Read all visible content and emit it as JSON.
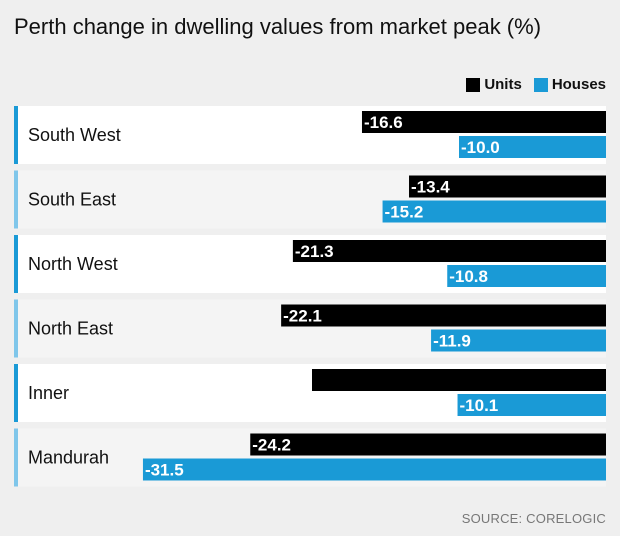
{
  "title": "Perth change in dwelling values from market peak (%)",
  "source": "SOURCE: CORELOGIC",
  "colors": {
    "units": "#000000",
    "houses": "#1a9ad6",
    "accent_dark": "#1a9ad6",
    "accent_light": "#7fc6ea",
    "row_white": "#ffffff",
    "row_grey": "#f4f4f4"
  },
  "chart_data": {
    "type": "bar",
    "orientation": "horizontal",
    "title": "Perth change in dwelling values from market peak (%)",
    "categories": [
      "South West",
      "South East",
      "North West",
      "North East",
      "Inner",
      "Mandurah"
    ],
    "series": [
      {
        "name": "Units",
        "values": [
          -16.6,
          -13.4,
          -21.3,
          -22.1,
          -20.0,
          -24.2
        ],
        "labels": [
          "-16.6",
          "-13.4",
          "-21.3",
          "-22.1",
          "",
          "-24.2"
        ]
      },
      {
        "name": "Houses",
        "values": [
          -10.0,
          -15.2,
          -10.8,
          -11.9,
          -10.1,
          -31.5
        ],
        "labels": [
          "-10.0",
          "-15.2",
          "-10.8",
          "-11.9",
          "-10.1",
          "-31.5"
        ]
      }
    ],
    "legend_position": "top-right",
    "grid": false
  }
}
